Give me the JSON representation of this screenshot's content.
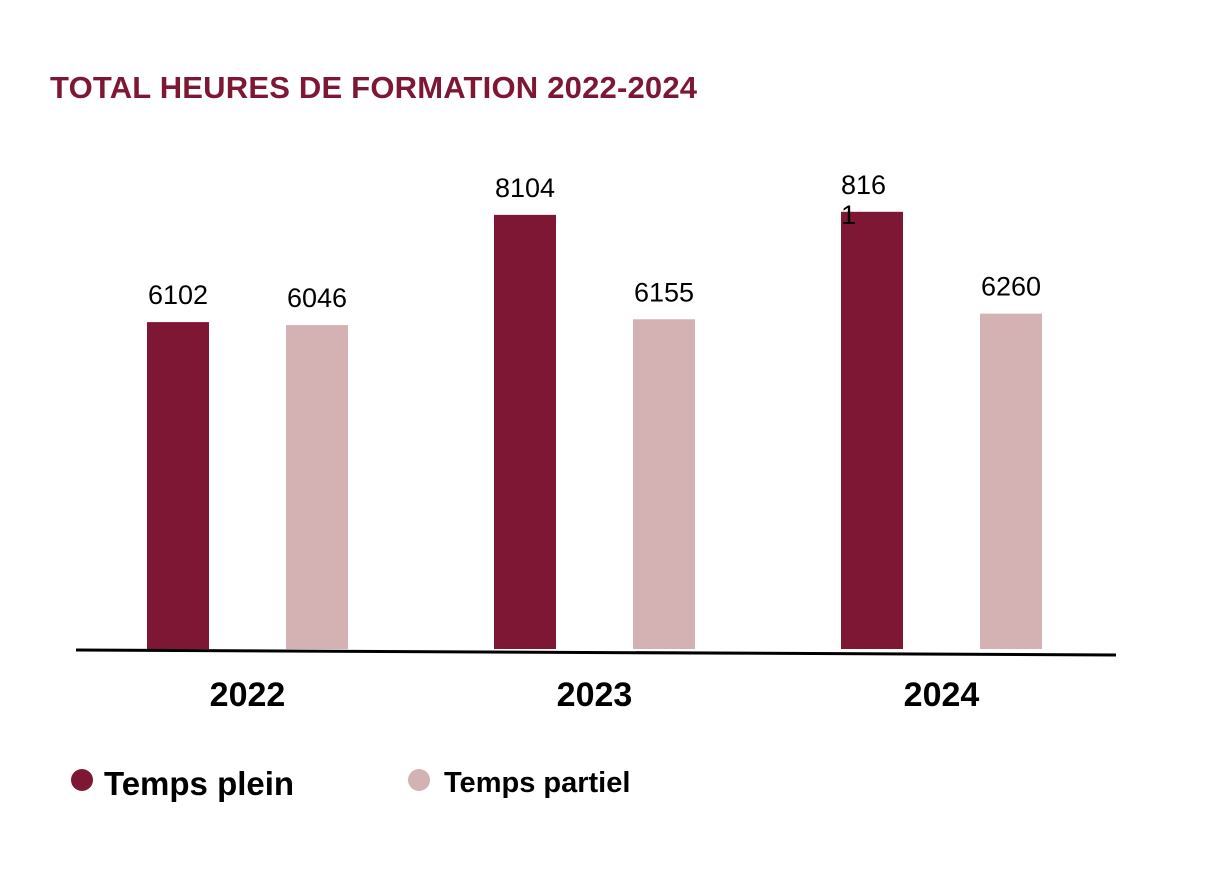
{
  "colors": {
    "title": "#7e1734",
    "temps_plein": "#7e1734",
    "temps_partiel": "#d4b1b3",
    "axis": "#000000"
  },
  "chart_data": {
    "type": "bar",
    "title": "TOTAL HEURES DE FORMATION 2022-2024",
    "categories": [
      "2022",
      "2023",
      "2024"
    ],
    "series": [
      {
        "name": "Temps plein",
        "values": [
          6102,
          8104,
          8161
        ],
        "labels": [
          "6102",
          "8104",
          "816\n1"
        ]
      },
      {
        "name": "Temps partiel",
        "values": [
          6046,
          6155,
          6260
        ],
        "labels": [
          "6046",
          "6155",
          "6260"
        ]
      }
    ],
    "ylim": [
      0,
      8400
    ],
    "grid": false,
    "legend": "bottom-left"
  }
}
